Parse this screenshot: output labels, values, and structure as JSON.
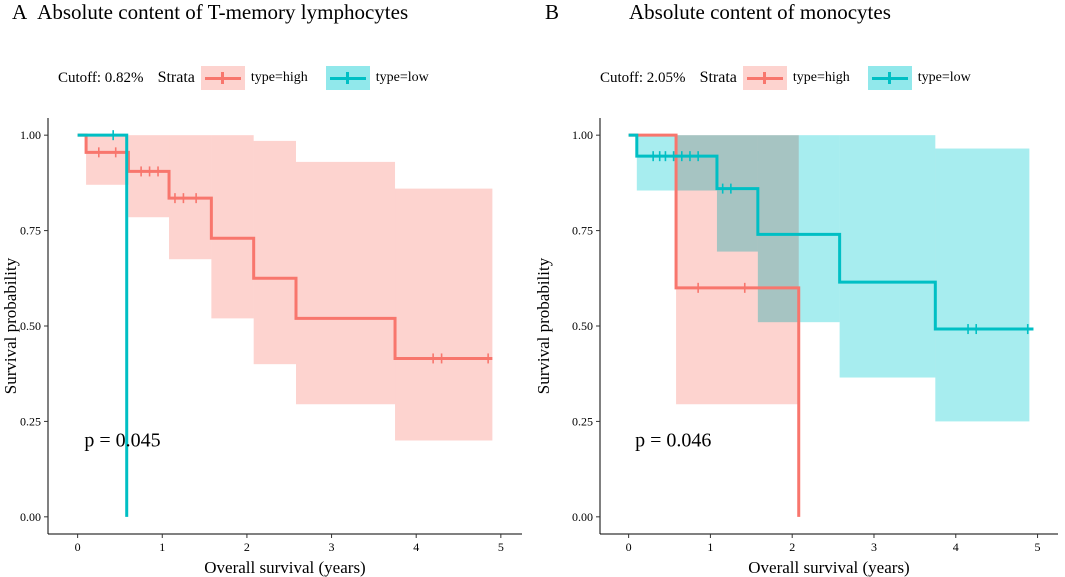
{
  "colors": {
    "high": "#F8766D",
    "high_ci": "#FDD3CF",
    "low": "#00BFC4",
    "low_ci": "#91E8EB",
    "overlap": "#A9C4C3"
  },
  "chart_data": [
    {
      "type": "line",
      "subtype": "kaplan-meier",
      "panel_letter": "A",
      "title": "Absolute content of T-memory lymphocytes",
      "cutoff_text": "Cutoff: 0.82%",
      "legend_title": "Strata",
      "xlabel": "Overall survival (years)",
      "ylabel": "Survival probability",
      "xlim": [
        -0.35,
        5.25
      ],
      "ylim": [
        -0.045,
        1.045
      ],
      "x_ticks": [
        0,
        1,
        2,
        3,
        4,
        5
      ],
      "x_tick_labels": [
        "0",
        "1",
        "2",
        "3",
        "4",
        "5"
      ],
      "y_ticks": [
        0,
        0.25,
        0.5,
        0.75,
        1
      ],
      "y_tick_labels": [
        "0.00",
        "0.25",
        "0.50",
        "0.75",
        "1.00"
      ],
      "pvalue": {
        "text": "p = 0.045",
        "x": 0.08,
        "y": 0.2
      },
      "series": [
        {
          "name": "type=high",
          "color_key": "high",
          "step_x": [
            0,
            0.1,
            0.6,
            1.08,
            1.58,
            2.08,
            2.58,
            3.75,
            4.9
          ],
          "step_y": [
            1,
            0.955,
            0.905,
            0.835,
            0.73,
            0.625,
            0.52,
            0.415,
            0.415
          ],
          "ci": [
            {
              "x0": 0.1,
              "x1": 0.6,
              "lo": 0.87,
              "hi": 1.0
            },
            {
              "x0": 0.6,
              "x1": 1.08,
              "lo": 0.785,
              "hi": 1.0
            },
            {
              "x0": 1.08,
              "x1": 1.58,
              "lo": 0.675,
              "hi": 1.0
            },
            {
              "x0": 1.58,
              "x1": 2.08,
              "lo": 0.52,
              "hi": 1.0
            },
            {
              "x0": 2.08,
              "x1": 2.58,
              "lo": 0.4,
              "hi": 0.985
            },
            {
              "x0": 2.58,
              "x1": 3.75,
              "lo": 0.295,
              "hi": 0.93
            },
            {
              "x0": 3.75,
              "x1": 4.9,
              "lo": 0.2,
              "hi": 0.86
            }
          ],
          "censor_x": [
            0.25,
            0.45,
            0.75,
            0.85,
            0.95,
            1.15,
            1.25,
            1.4,
            4.2,
            4.3,
            4.85
          ],
          "censor_y": [
            0.955,
            0.955,
            0.905,
            0.905,
            0.905,
            0.835,
            0.835,
            0.835,
            0.415,
            0.415,
            0.415
          ]
        },
        {
          "name": "type=low",
          "color_key": "low",
          "step_x": [
            0,
            0.58
          ],
          "step_y": [
            1,
            0
          ],
          "ci": [],
          "censor_x": [
            0.42
          ],
          "censor_y": [
            1
          ]
        }
      ]
    },
    {
      "type": "line",
      "subtype": "kaplan-meier",
      "panel_letter": "B",
      "title": "Absolute content of monocytes",
      "cutoff_text": "Cutoff: 2.05%",
      "legend_title": "Strata",
      "xlabel": "Overall survival (years)",
      "ylabel": "Survival probability",
      "xlim": [
        -0.35,
        5.25
      ],
      "ylim": [
        -0.045,
        1.045
      ],
      "x_ticks": [
        0,
        1,
        2,
        3,
        4,
        5
      ],
      "x_tick_labels": [
        "0",
        "1",
        "2",
        "3",
        "4",
        "5"
      ],
      "y_ticks": [
        0,
        0.25,
        0.5,
        0.75,
        1
      ],
      "y_tick_labels": [
        "0.00",
        "0.25",
        "0.50",
        "0.75",
        "1.00"
      ],
      "pvalue": {
        "text": "p = 0.046",
        "x": 0.08,
        "y": 0.2
      },
      "series": [
        {
          "name": "type=high",
          "color_key": "high",
          "step_x": [
            0,
            0.58,
            2.08
          ],
          "step_y": [
            1,
            0.6,
            0
          ],
          "ci": [
            {
              "x0": 0.58,
              "x1": 2.08,
              "lo": 0.295,
              "hi": 1.0
            }
          ],
          "censor_x": [
            0.85,
            1.42
          ],
          "censor_y": [
            0.6,
            0.6
          ]
        },
        {
          "name": "type=low",
          "color_key": "low",
          "step_x": [
            0,
            0.1,
            1.08,
            1.58,
            2.58,
            3.75,
            4.95
          ],
          "step_y": [
            1,
            0.945,
            0.86,
            0.74,
            0.615,
            0.492,
            0.492
          ],
          "ci": [
            {
              "x0": 0.1,
              "x1": 1.08,
              "lo": 0.855,
              "hi": 1.0
            },
            {
              "x0": 1.08,
              "x1": 1.58,
              "lo": 0.695,
              "hi": 1.0
            },
            {
              "x0": 1.58,
              "x1": 2.58,
              "lo": 0.51,
              "hi": 1.0
            },
            {
              "x0": 2.58,
              "x1": 3.75,
              "lo": 0.365,
              "hi": 1.0
            },
            {
              "x0": 3.75,
              "x1": 4.9,
              "lo": 0.25,
              "hi": 0.965
            }
          ],
          "censor_x": [
            0.3,
            0.38,
            0.45,
            0.55,
            0.65,
            0.75,
            0.85,
            1.15,
            1.25,
            4.15,
            4.25,
            4.88
          ],
          "censor_y": [
            0.945,
            0.945,
            0.945,
            0.945,
            0.945,
            0.945,
            0.945,
            0.86,
            0.86,
            0.492,
            0.492,
            0.492
          ]
        }
      ]
    }
  ]
}
